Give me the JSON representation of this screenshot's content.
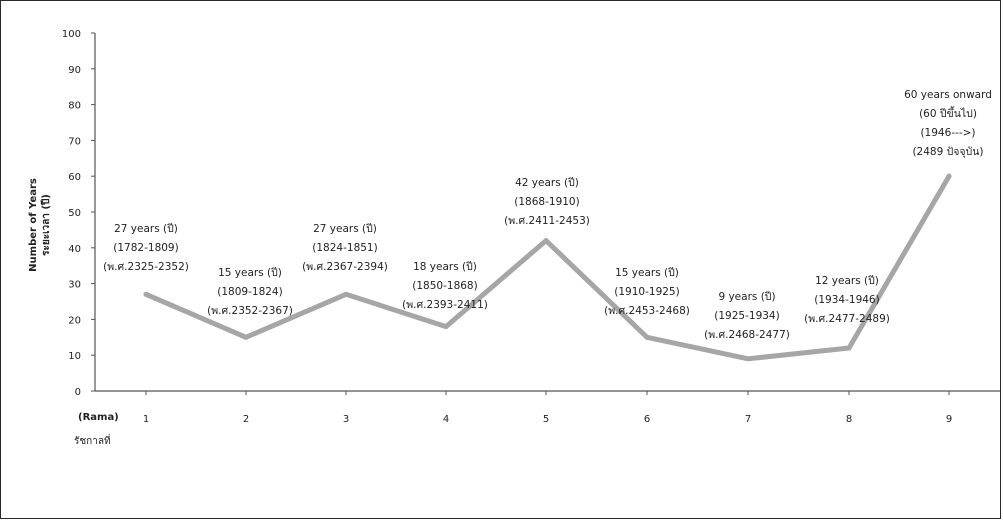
{
  "chart_data": {
    "type": "line",
    "title": "",
    "ylabel": [
      "Number of Years",
      "ระยะเวลา (ปี)"
    ],
    "xlabel": [
      "(Rama)",
      "รัชกาลที่"
    ],
    "ylim": [
      0,
      100
    ],
    "yticks": [
      0,
      10,
      20,
      30,
      40,
      50,
      60,
      70,
      80,
      90,
      100
    ],
    "categories": [
      "1",
      "2",
      "3",
      "4",
      "5",
      "6",
      "7",
      "8",
      "9"
    ],
    "series": [
      {
        "values": [
          27,
          15,
          27,
          18,
          42,
          15,
          9,
          12,
          60
        ],
        "color": "#a6a6a6"
      }
    ],
    "annotations": [
      [
        "27 years (ปี)",
        "(1782-1809)",
        "(พ.ศ.2325-2352)"
      ],
      [
        "15 years (ปี)",
        "(1809-1824)",
        "(พ.ศ.2352-2367)"
      ],
      [
        "27 years (ปี)",
        "(1824-1851)",
        "(พ.ศ.2367-2394)"
      ],
      [
        "18 years (ปี)",
        "(1850-1868)",
        "(พ.ศ.2393-2411)"
      ],
      [
        "42 years (ปี)",
        "(1868-1910)",
        "(พ.ศ.2411-2453)"
      ],
      [
        "15 years (ปี)",
        "(1910-1925)",
        "(พ.ศ.2453-2468)"
      ],
      [
        "9 years (ปี)",
        "(1925-1934)",
        "(พ.ศ.2468-2477)"
      ],
      [
        "12 years (ปี)",
        "(1934-1946)",
        "(พ.ศ.2477-2489)"
      ],
      [
        "60 years onward",
        "(60 ปีขึ้นไป)",
        "(1946--->)",
        "(2489 ปัจจุบัน)"
      ]
    ],
    "grid": false,
    "legend": "none"
  }
}
